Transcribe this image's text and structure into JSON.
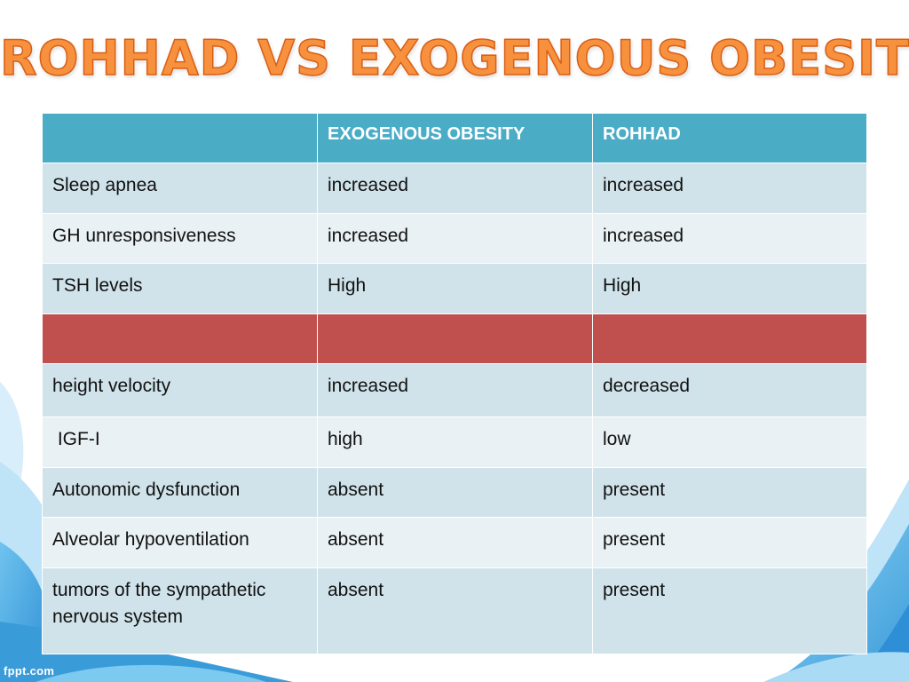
{
  "slide": {
    "title": "ROHHAD VS EXOGENOUS OBESITY",
    "footer": "fppt.com",
    "colors": {
      "title_fill": "#f7913d",
      "title_stroke": "#d85f16",
      "header_bg": "#4bacc6",
      "row_dark": "#d0e3ea",
      "row_light": "#e9f1f4",
      "separator_row": "#c0504d",
      "background_accent": "#3a9bd9"
    }
  },
  "table": {
    "headers": [
      "",
      "EXOGENOUS OBESITY",
      "ROHHAD"
    ],
    "rows": [
      [
        "Sleep apnea",
        "increased",
        "increased"
      ],
      [
        "GH unresponsiveness",
        "increased",
        "increased"
      ],
      [
        "TSH levels",
        "High",
        "High"
      ],
      [
        "",
        "",
        ""
      ],
      [
        "height velocity",
        "increased",
        "decreased"
      ],
      [
        " IGF-I",
        "high",
        "low"
      ],
      [
        "Autonomic dysfunction",
        "absent",
        "present"
      ],
      [
        "Alveolar hypoventilation",
        "absent",
        "present"
      ],
      [
        "tumors of the sympathetic nervous system",
        "absent",
        "present"
      ]
    ]
  }
}
